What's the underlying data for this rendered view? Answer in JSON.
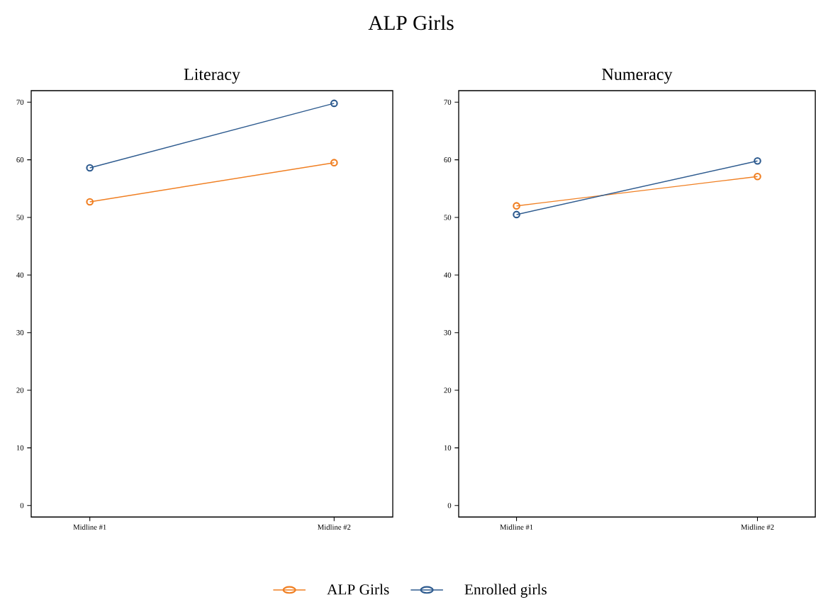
{
  "chart_data": [
    {
      "type": "line",
      "title": "Literacy",
      "annotations": [
        "ALP Girls"
      ],
      "categories": [
        "Midline #1",
        "Midline #2"
      ],
      "ylim": [
        -2,
        72
      ],
      "yticks": [
        0,
        10,
        20,
        30,
        40,
        50,
        60,
        70
      ],
      "marker": "circle",
      "line_style": "solid",
      "grid": false,
      "legend": "bottom",
      "series": [
        {
          "name": "ALP Girls",
          "color": "#f07f22",
          "values": [
            52.7,
            59.5
          ]
        },
        {
          "name": "Enrolled girls",
          "color": "#2e5b8f",
          "values": [
            58.6,
            69.8
          ]
        }
      ]
    },
    {
      "type": "line",
      "title": "Numeracy",
      "categories": [
        "Midline #1",
        "Midline #2"
      ],
      "ylim": [
        -2,
        72
      ],
      "yticks": [
        0,
        10,
        20,
        30,
        40,
        50,
        60,
        70
      ],
      "marker": "circle",
      "line_style": "solid",
      "grid": false,
      "series": [
        {
          "color": "#f07f22",
          "values": [
            52.0,
            57.1
          ]
        },
        {
          "color": "#2e5b8f",
          "values": [
            50.5,
            59.8
          ]
        }
      ]
    }
  ]
}
